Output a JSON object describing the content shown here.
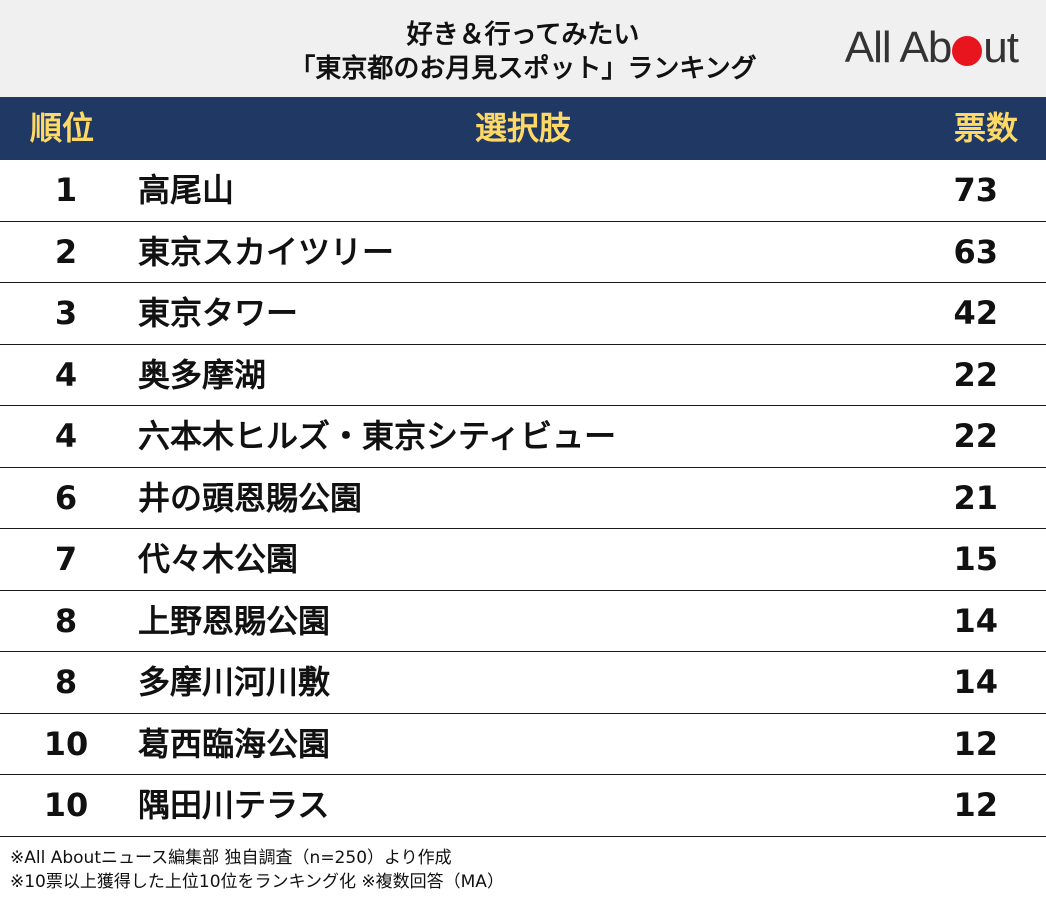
{
  "header": {
    "title_line1": "好き＆行ってみたい",
    "title_line2": "「東京都のお月見スポット」ランキング",
    "logo_left": "All Ab",
    "logo_right": "ut",
    "logo_dot_color": "#e8141e"
  },
  "table": {
    "columns": {
      "rank": "順位",
      "choice": "選択肢",
      "votes": "票数"
    },
    "header_bg": "#203864",
    "header_text_color": "#ffd966",
    "rows": [
      {
        "rank": "1",
        "name": "高尾山",
        "votes": "73"
      },
      {
        "rank": "2",
        "name": "東京スカイツリー",
        "votes": "63"
      },
      {
        "rank": "3",
        "name": "東京タワー",
        "votes": "42"
      },
      {
        "rank": "4",
        "name": "奥多摩湖",
        "votes": "22"
      },
      {
        "rank": "4",
        "name": "六本木ヒルズ・東京シティビュー",
        "votes": "22"
      },
      {
        "rank": "6",
        "name": "井の頭恩賜公園",
        "votes": "21"
      },
      {
        "rank": "7",
        "name": "代々木公園",
        "votes": "15"
      },
      {
        "rank": "8",
        "name": "上野恩賜公園",
        "votes": "14"
      },
      {
        "rank": "8",
        "name": "多摩川河川敷",
        "votes": "14"
      },
      {
        "rank": "10",
        "name": "葛西臨海公園",
        "votes": "12"
      },
      {
        "rank": "10",
        "name": "隅田川テラス",
        "votes": "12"
      }
    ]
  },
  "notes": {
    "line1": "※All Aboutニュース編集部 独自調査（n=250）より作成",
    "line2": "※10票以上獲得した上位10位をランキング化 ※複数回答（MA）"
  }
}
